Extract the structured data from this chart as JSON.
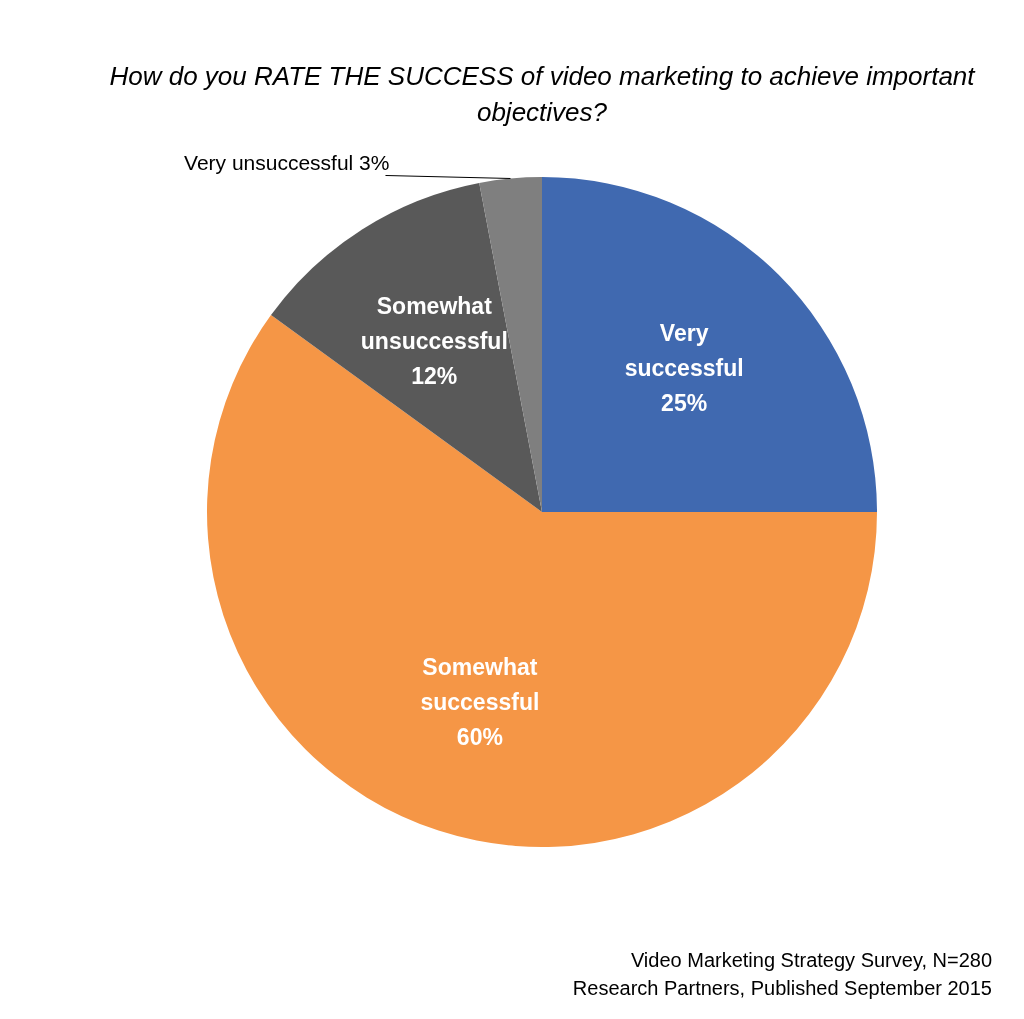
{
  "chart_data": {
    "type": "pie",
    "title": "How do you RATE THE SUCCESS of video marketing to achieve important objectives?",
    "categories": [
      "Very successful",
      "Somewhat successful",
      "Somewhat unsuccessful",
      "Very unsuccessful"
    ],
    "values": [
      25,
      60,
      12,
      3
    ],
    "value_labels": [
      "25%",
      "60%",
      "12%",
      "3%"
    ],
    "colors": [
      "#4069b0",
      "#f59646",
      "#595959",
      "#7f7f7f"
    ],
    "legend": false,
    "annotations": [
      "Video Marketing Strategy Survey, N=280",
      "Research Partners, Published September 2015"
    ]
  }
}
